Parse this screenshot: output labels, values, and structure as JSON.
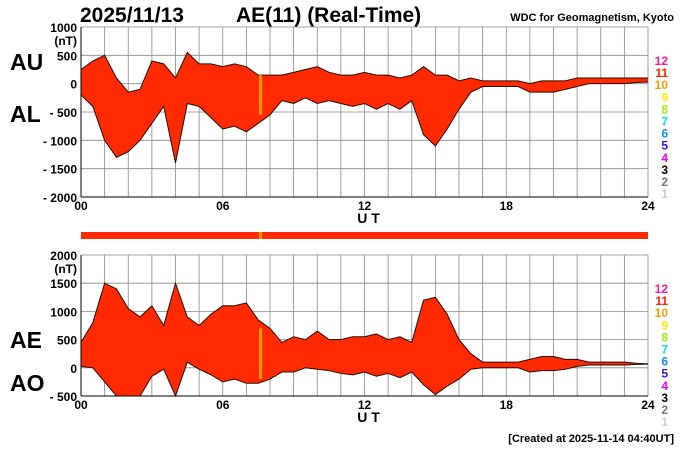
{
  "header": {
    "date": "2025/11/13",
    "title": "AE(11) (Real-Time)",
    "source": "WDC for Geomagnetism, Kyoto"
  },
  "footer": {
    "created": "[Created at 2025-11-14 04:40UT]"
  },
  "legend_levels": [
    {
      "label": "12",
      "color": "#ff1a8c"
    },
    {
      "label": "11",
      "color": "#ff2200"
    },
    {
      "label": "10",
      "color": "#ff9900"
    },
    {
      "label": "9",
      "color": "#ffee00"
    },
    {
      "label": "8",
      "color": "#99ee00"
    },
    {
      "label": "7",
      "color": "#00eecc"
    },
    {
      "label": "6",
      "color": "#1a88ff"
    },
    {
      "label": "5",
      "color": "#3311ee"
    },
    {
      "label": "4",
      "color": "#ee00ee"
    },
    {
      "label": "3",
      "color": "#000000"
    },
    {
      "label": "2",
      "color": "#777777"
    },
    {
      "label": "1",
      "color": "#cccccc"
    }
  ],
  "colors": {
    "fill": "#ff2a00",
    "outline": "#2a0a00",
    "highlight": "#ff9900",
    "grid": "#888888"
  },
  "chart_data": [
    {
      "type": "area",
      "panel": "top",
      "labels": [
        "AU",
        "AL"
      ],
      "unit": "(nT)",
      "xlabel": "U T",
      "xlim": [
        0,
        24
      ],
      "ylim": [
        -2000,
        1000
      ],
      "xticks": [
        "00",
        "06",
        "12",
        "18",
        "24"
      ],
      "yticks": [
        "1000",
        "500",
        "0",
        "- 500",
        "- 1000",
        "- 1500",
        "- 2000"
      ],
      "grid": true,
      "highlight_time": 7.6,
      "x": [
        0,
        0.5,
        1,
        1.5,
        2,
        2.5,
        3,
        3.5,
        4,
        4.5,
        5,
        5.5,
        6,
        6.5,
        7,
        7.5,
        8,
        8.5,
        9,
        9.5,
        10,
        10.5,
        11,
        11.5,
        12,
        12.5,
        13,
        13.5,
        14,
        14.5,
        15,
        15.5,
        16,
        16.5,
        17,
        17.5,
        18,
        18.5,
        19,
        19.5,
        20,
        20.5,
        21,
        21.5,
        22,
        22.5,
        23,
        23.5,
        24
      ],
      "series": [
        {
          "name": "AU",
          "values": [
            250,
            400,
            500,
            100,
            -150,
            -100,
            400,
            350,
            100,
            550,
            350,
            350,
            300,
            350,
            300,
            150,
            150,
            150,
            200,
            250,
            300,
            200,
            150,
            150,
            200,
            150,
            150,
            100,
            150,
            300,
            150,
            150,
            50,
            100,
            50,
            50,
            50,
            50,
            0,
            50,
            50,
            50,
            100,
            100,
            100,
            100,
            100,
            100,
            100
          ]
        },
        {
          "name": "AL",
          "values": [
            -200,
            -400,
            -1000,
            -1300,
            -1200,
            -1000,
            -700,
            -400,
            -1400,
            -350,
            -400,
            -600,
            -800,
            -750,
            -850,
            -700,
            -550,
            -300,
            -350,
            -250,
            -350,
            -300,
            -350,
            -400,
            -350,
            -450,
            -350,
            -450,
            -300,
            -900,
            -1100,
            -800,
            -450,
            -150,
            -50,
            -50,
            -50,
            -50,
            -150,
            -150,
            -150,
            -100,
            -50,
            0,
            0,
            0,
            0,
            20,
            30
          ]
        }
      ]
    },
    {
      "type": "area",
      "panel": "bottom",
      "labels": [
        "AE",
        "AO"
      ],
      "unit": "(nT)",
      "xlabel": "U T",
      "xlim": [
        0,
        24
      ],
      "ylim": [
        -500,
        2000
      ],
      "xticks": [
        "00",
        "06",
        "12",
        "18",
        "24"
      ],
      "yticks": [
        "2000",
        "1500",
        "1000",
        "500",
        "0",
        "- 500"
      ],
      "grid": true,
      "highlight_time": 7.6,
      "x": [
        0,
        0.5,
        1,
        1.5,
        2,
        2.5,
        3,
        3.5,
        4,
        4.5,
        5,
        5.5,
        6,
        6.5,
        7,
        7.5,
        8,
        8.5,
        9,
        9.5,
        10,
        10.5,
        11,
        11.5,
        12,
        12.5,
        13,
        13.5,
        14,
        14.5,
        15,
        15.5,
        16,
        16.5,
        17,
        17.5,
        18,
        18.5,
        19,
        19.5,
        20,
        20.5,
        21,
        21.5,
        22,
        22.5,
        23,
        23.5,
        24
      ],
      "series": [
        {
          "name": "AE",
          "values": [
            450,
            800,
            1500,
            1400,
            1050,
            900,
            1100,
            750,
            1500,
            900,
            750,
            950,
            1100,
            1100,
            1150,
            850,
            700,
            450,
            550,
            500,
            650,
            500,
            500,
            550,
            550,
            600,
            500,
            550,
            450,
            1200,
            1250,
            950,
            500,
            250,
            100,
            100,
            100,
            100,
            150,
            200,
            200,
            150,
            150,
            100,
            100,
            100,
            100,
            80,
            70
          ]
        },
        {
          "name": "AO",
          "values": [
            25,
            0,
            -250,
            -600,
            -675,
            -550,
            -150,
            -25,
            -650,
            100,
            -25,
            -125,
            -250,
            -200,
            -275,
            -275,
            -200,
            -75,
            -75,
            0,
            -25,
            -50,
            -100,
            -125,
            -75,
            -150,
            -100,
            -175,
            -75,
            -300,
            -475,
            -325,
            -200,
            -25,
            0,
            0,
            0,
            0,
            -75,
            -50,
            -50,
            -25,
            25,
            50,
            50,
            50,
            50,
            60,
            65
          ]
        }
      ]
    }
  ]
}
